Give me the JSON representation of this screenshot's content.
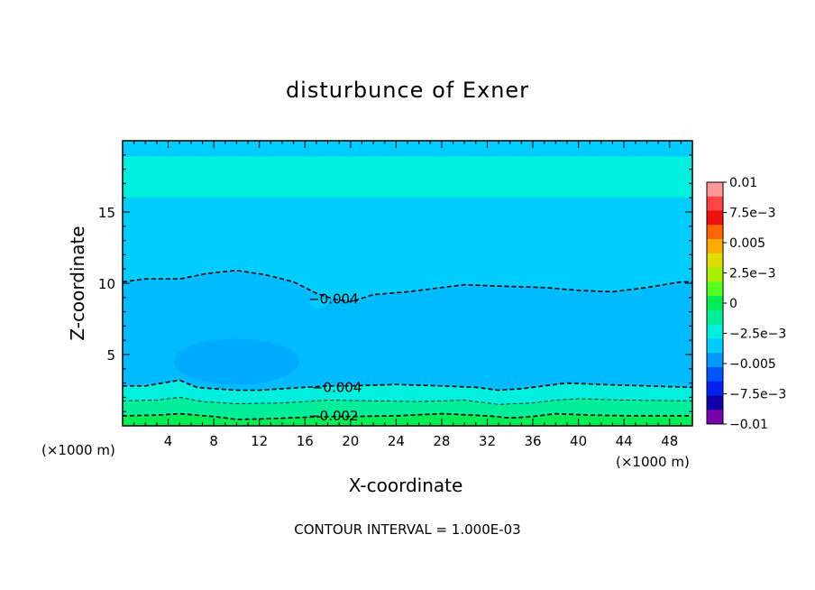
{
  "chart_data": {
    "type": "contour",
    "title": "disturbunce of Exner",
    "xlabel": "X-coordinate",
    "ylabel": "Z-coordinate",
    "x_unit_label": "(×1000 m)",
    "xlim": [
      0,
      50
    ],
    "ylim": [
      0,
      20
    ],
    "xticks": [
      4,
      8,
      12,
      16,
      20,
      24,
      28,
      32,
      36,
      40,
      44,
      48
    ],
    "yticks": [
      5,
      10,
      15
    ],
    "contour_interval_text": "CONTOUR INTERVAL = 1.000E-03",
    "contour_labels": [
      {
        "text": "−0.004",
        "x": 18.5,
        "z": 8.9
      },
      {
        "text": "−0.004",
        "x": 18.8,
        "z": 2.7
      },
      {
        "text": "−0.002",
        "x": 18.5,
        "z": 0.7
      }
    ],
    "contours": [
      {
        "level": -0.004,
        "style": "dashed",
        "points": [
          [
            0,
            10.1
          ],
          [
            2,
            10.3
          ],
          [
            5,
            10.3
          ],
          [
            7.5,
            10.7
          ],
          [
            10,
            10.9
          ],
          [
            12.5,
            10.6
          ],
          [
            15,
            10.1
          ],
          [
            17,
            9.3
          ],
          [
            18.5,
            8.9
          ],
          [
            20,
            8.7
          ],
          [
            22,
            9.2
          ],
          [
            25,
            9.4
          ],
          [
            28,
            9.7
          ],
          [
            30,
            9.9
          ],
          [
            33,
            9.8
          ],
          [
            37,
            9.7
          ],
          [
            40,
            9.5
          ],
          [
            43,
            9.4
          ],
          [
            46,
            9.7
          ],
          [
            49,
            10.1
          ],
          [
            50,
            10.1
          ]
        ]
      },
      {
        "level": -0.004,
        "style": "dashed",
        "points": [
          [
            0,
            2.8
          ],
          [
            2,
            2.8
          ],
          [
            3.5,
            3.0
          ],
          [
            5,
            3.2
          ],
          [
            6.5,
            2.7
          ],
          [
            8,
            2.6
          ],
          [
            10,
            2.5
          ],
          [
            12,
            2.5
          ],
          [
            14,
            2.6
          ],
          [
            16,
            2.7
          ],
          [
            18,
            2.8
          ],
          [
            20,
            2.8
          ],
          [
            24,
            2.9
          ],
          [
            28,
            2.8
          ],
          [
            31,
            2.7
          ],
          [
            33,
            2.5
          ],
          [
            35,
            2.6
          ],
          [
            37,
            2.8
          ],
          [
            39,
            3.0
          ],
          [
            42,
            2.9
          ],
          [
            46,
            2.8
          ],
          [
            50,
            2.7
          ]
        ]
      },
      {
        "level": -0.003,
        "style": "thin",
        "points": [
          [
            0,
            1.75
          ],
          [
            3,
            1.8
          ],
          [
            5,
            2.0
          ],
          [
            7,
            1.7
          ],
          [
            10,
            1.55
          ],
          [
            14,
            1.6
          ],
          [
            18,
            1.8
          ],
          [
            22,
            1.75
          ],
          [
            26,
            1.7
          ],
          [
            30,
            1.8
          ],
          [
            33,
            1.5
          ],
          [
            36,
            1.6
          ],
          [
            38,
            1.8
          ],
          [
            40,
            1.9
          ],
          [
            44,
            1.8
          ],
          [
            50,
            1.75
          ]
        ]
      },
      {
        "level": -0.002,
        "style": "dashed",
        "points": [
          [
            0,
            0.7
          ],
          [
            3,
            0.75
          ],
          [
            5,
            0.85
          ],
          [
            8,
            0.65
          ],
          [
            10,
            0.45
          ],
          [
            13,
            0.5
          ],
          [
            16,
            0.6
          ],
          [
            18.5,
            0.65
          ],
          [
            20,
            0.65
          ],
          [
            24,
            0.7
          ],
          [
            28,
            0.85
          ],
          [
            32,
            0.7
          ],
          [
            34,
            0.55
          ],
          [
            36,
            0.65
          ],
          [
            38,
            0.85
          ],
          [
            41,
            0.75
          ],
          [
            45,
            0.7
          ],
          [
            50,
            0.7
          ]
        ]
      }
    ],
    "fill_bands": [
      {
        "name": "upper",
        "color": "#00eedd",
        "points_top": [
          [
            0,
            18.9
          ],
          [
            50,
            18.9
          ]
        ],
        "points_bottom": [
          [
            0,
            16.0
          ],
          [
            50,
            16.0
          ]
        ]
      },
      {
        "name": "pocket",
        "color": "#00aaff",
        "center": [
          10,
          4.5
        ],
        "radii": [
          5.5,
          1.6
        ]
      }
    ],
    "colorbar": {
      "ticks": [
        "0.01",
        "7.5e−3",
        "0.005",
        "2.5e−3",
        "0",
        "−2.5e−3",
        "−0.005",
        "−7.5e−3",
        "−0.01"
      ],
      "colors": [
        "#ff9999",
        "#ff4444",
        "#ee1111",
        "#ff6600",
        "#ffaa00",
        "#dddd00",
        "#aaee00",
        "#55ff22",
        "#00ee55",
        "#00ee99",
        "#00eedd",
        "#00ccff",
        "#0099ff",
        "#0055ff",
        "#0022ee",
        "#1100aa",
        "#7700aa"
      ]
    },
    "colors": {
      "background_fill": "#00ccff",
      "top_fill": "#00eedd",
      "mid_fill": "#00bbff",
      "pocket_fill": "#00aaff",
      "near_ground_1": "#00eedd",
      "near_ground_2": "#00ee99",
      "ground": "#00ee55"
    }
  }
}
